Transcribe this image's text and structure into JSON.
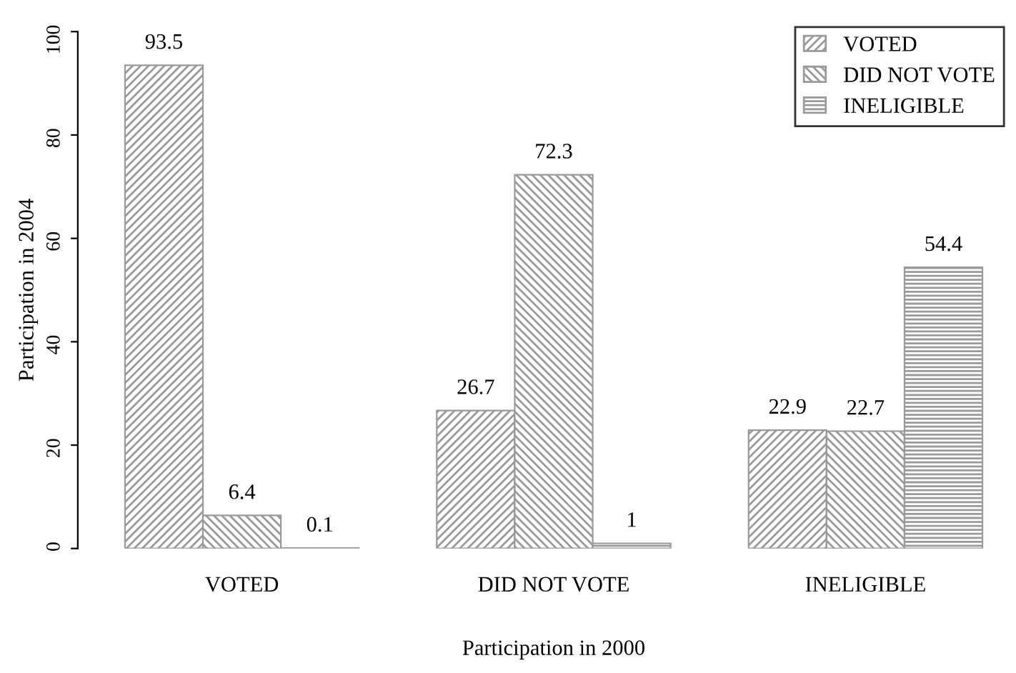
{
  "chart_data": {
    "type": "bar",
    "xlabel": "Participation in 2000",
    "ylabel": "Participation in 2004",
    "categories": [
      "VOTED",
      "DID NOT VOTE",
      "INELIGIBLE"
    ],
    "series": [
      {
        "name": "VOTED",
        "color": "#9a9a9a",
        "values": [
          93.5,
          26.7,
          22.9
        ]
      },
      {
        "name": "DID NOT VOTE",
        "color": "#9a9a9a",
        "values": [
          6.4,
          72.3,
          22.7
        ]
      },
      {
        "name": "INELIGIBLE",
        "color": "#9a9a9a",
        "values": [
          0.1,
          1,
          54.4
        ]
      }
    ],
    "ylim": [
      0,
      100
    ],
    "yticks": [
      0,
      20,
      40,
      60,
      80,
      100
    ],
    "data_labels": true,
    "legend": "top right",
    "grid": false
  }
}
